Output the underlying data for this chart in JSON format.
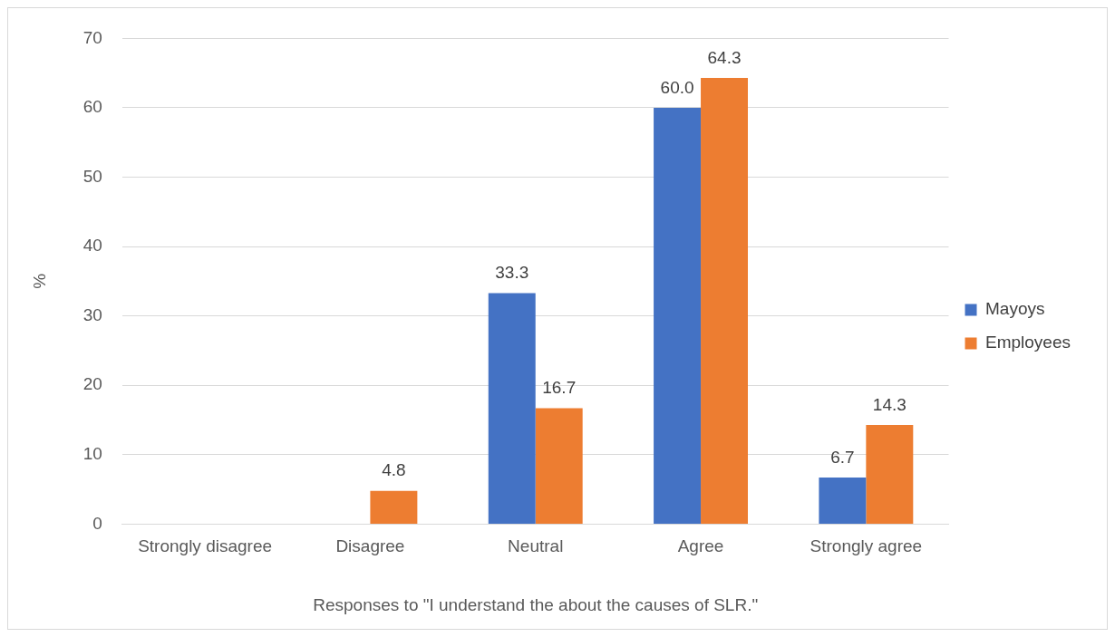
{
  "chart_data": {
    "type": "bar",
    "xlabel": "Responses to \"I understand the about the causes of SLR.\"",
    "ylabel": "%",
    "categories": [
      "Strongly disagree",
      "Disagree",
      "Neutral",
      "Agree",
      "Strongly agree"
    ],
    "series": [
      {
        "name": "Mayoys",
        "color": "#4472c4",
        "values": [
          0,
          0,
          33.3,
          60.0,
          6.7
        ],
        "value_labels": [
          null,
          null,
          "33.3",
          "60.0",
          "6.7"
        ]
      },
      {
        "name": "Employees",
        "color": "#ed7d31",
        "values": [
          0,
          4.8,
          16.7,
          64.3,
          14.3
        ],
        "value_labels": [
          null,
          "4.8",
          "16.7",
          "64.3",
          "14.3"
        ]
      }
    ],
    "ylim": [
      0,
      70
    ],
    "yticks": [
      0,
      10,
      20,
      30,
      40,
      50,
      60,
      70
    ],
    "grid": "y",
    "legend": "right"
  }
}
